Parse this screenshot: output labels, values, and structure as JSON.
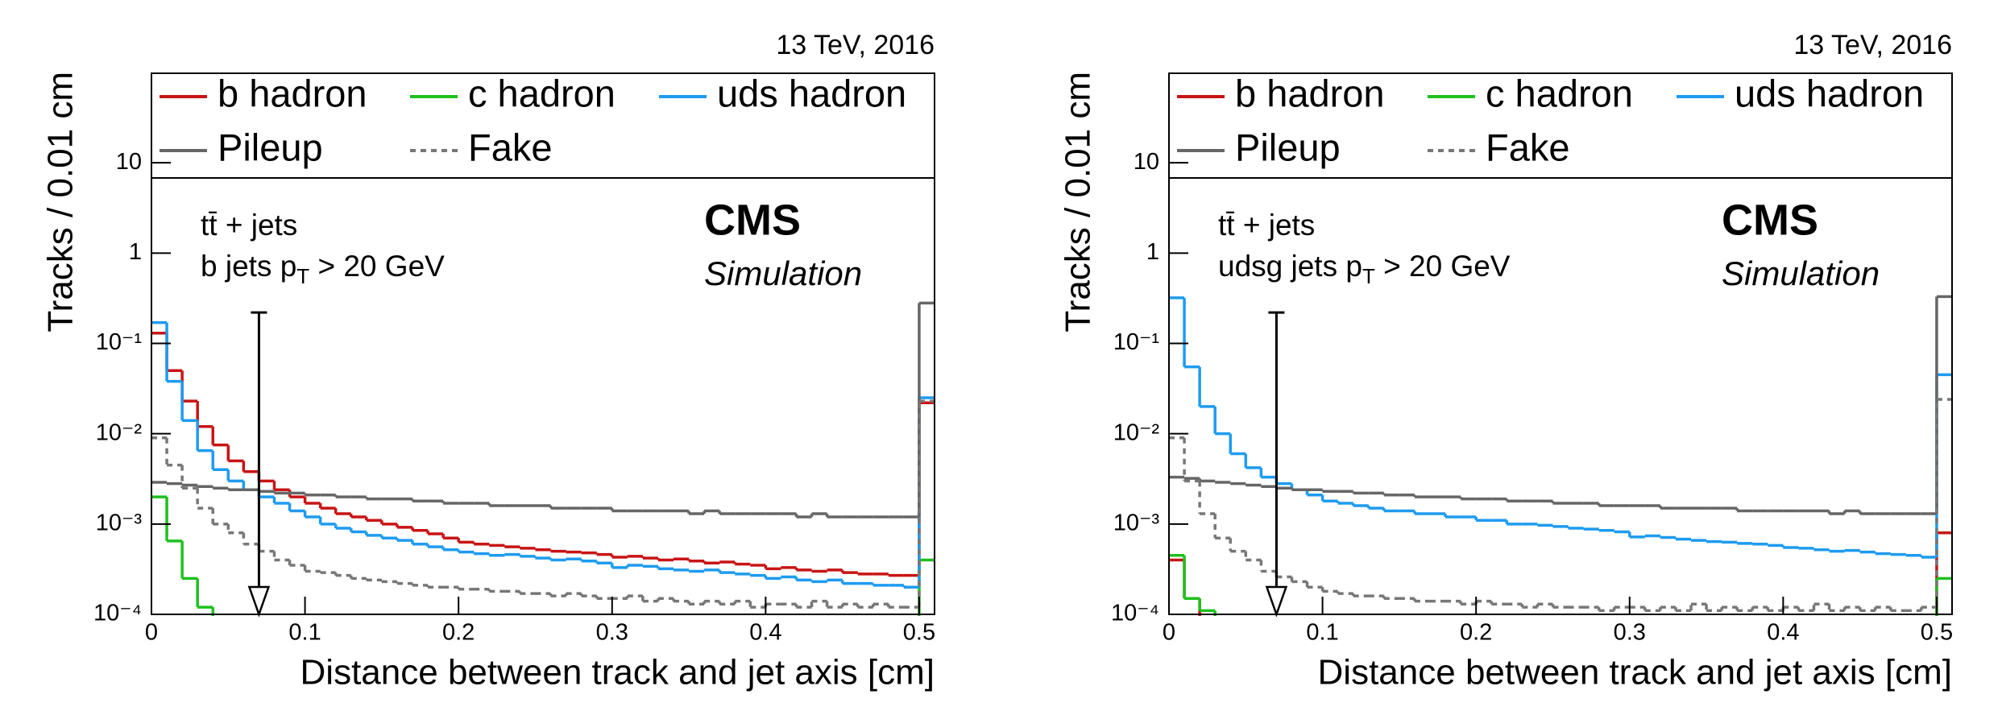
{
  "chart_data": [
    {
      "type": "histogram",
      "top_right": "13 TeV, 2016",
      "experiment": "CMS",
      "label": "Simulation",
      "annotations": [
        {
          "text": "tt̄ + jets"
        },
        {
          "text": "b jets p",
          "sub": "T",
          "tail": " > 20 GeV"
        }
      ],
      "xlabel": "Distance between track and jet axis [cm]",
      "ylabel": "Tracks / 0.01 cm",
      "log_y": true,
      "legend": "top",
      "xlim": [
        0,
        0.51
      ],
      "ylim": [
        0.0001,
        98
      ],
      "xticks": [
        0,
        0.1,
        0.2,
        0.3,
        0.4,
        0.5
      ],
      "yticks": [
        {
          "value": 0.0001,
          "label": "10⁻⁴"
        },
        {
          "value": 0.001,
          "label": "10⁻³"
        },
        {
          "value": 0.01,
          "label": "10⁻²"
        },
        {
          "value": 0.1,
          "label": "10⁻¹"
        },
        1,
        10
      ],
      "bins": [
        0,
        0.01,
        0.02,
        0.03,
        0.04,
        0.05,
        0.06,
        0.07,
        0.08,
        0.09,
        0.1,
        0.11,
        0.12,
        0.13,
        0.14,
        0.15,
        0.16,
        0.17,
        0.18,
        0.19,
        0.2,
        0.21,
        0.22,
        0.23,
        0.24,
        0.25,
        0.26,
        0.27,
        0.28,
        0.29,
        0.3,
        0.31,
        0.32,
        0.33,
        0.34,
        0.35,
        0.36,
        0.37,
        0.38,
        0.39,
        0.4,
        0.41,
        0.42,
        0.43,
        0.44,
        0.45,
        0.46,
        0.47,
        0.48,
        0.49,
        0.5,
        0.51
      ],
      "arrow": {
        "x": 0.07,
        "y": [
          0.22,
          0.0001
        ]
      },
      "series": [
        {
          "name": "b hadron",
          "color": "#c81414",
          "style": "solid",
          "values": [
            0.13,
            0.05,
            0.023,
            0.012,
            0.0075,
            0.005,
            0.0038,
            0.003,
            0.0024,
            0.002,
            0.0017,
            0.0015,
            0.0013,
            0.0012,
            0.0011,
            0.001,
            0.00092,
            0.00085,
            0.00078,
            0.0007,
            0.00063,
            0.0006,
            0.00058,
            0.00056,
            0.00054,
            0.00052,
            0.0005,
            0.00049,
            0.00048,
            0.00046,
            0.00043,
            0.00044,
            0.00042,
            0.0004,
            0.00041,
            0.00039,
            0.00037,
            0.00038,
            0.00036,
            0.00035,
            0.00032,
            0.00033,
            0.00031,
            0.0003,
            0.00031,
            0.00029,
            0.00028,
            0.00028,
            0.00027,
            0.00027,
            0.022
          ]
        },
        {
          "name": "c hadron",
          "color": "#1ec01e",
          "style": "solid",
          "values": [
            0.002,
            0.00065,
            0.00025,
            0.00012,
            1e-05,
            1e-05,
            1e-05,
            1e-05,
            1e-05,
            1e-05,
            1e-05,
            1e-05,
            1e-05,
            1e-05,
            1e-05,
            1e-05,
            1e-05,
            1e-05,
            1e-05,
            1e-05,
            1e-05,
            1e-05,
            1e-05,
            1e-05,
            1e-05,
            1e-05,
            1e-05,
            1e-05,
            1e-05,
            1e-05,
            1e-05,
            1e-05,
            1e-05,
            1e-05,
            1e-05,
            1e-05,
            1e-05,
            1e-05,
            1e-05,
            1e-05,
            1e-05,
            1e-05,
            1e-05,
            1e-05,
            1e-05,
            1e-05,
            1e-05,
            1e-05,
            1e-05,
            1e-05,
            0.0004
          ]
        },
        {
          "name": "uds hadron",
          "color": "#1e9bf0",
          "style": "solid",
          "values": [
            0.17,
            0.038,
            0.014,
            0.0065,
            0.004,
            0.003,
            0.0024,
            0.002,
            0.0017,
            0.0014,
            0.0012,
            0.001,
            0.0009,
            0.00082,
            0.00075,
            0.0007,
            0.00066,
            0.0006,
            0.00056,
            0.00052,
            0.00049,
            0.00047,
            0.00045,
            0.00046,
            0.00044,
            0.00042,
            0.0004,
            0.00041,
            0.00039,
            0.00037,
            0.00033,
            0.00035,
            0.00034,
            0.00032,
            0.00031,
            0.0003,
            0.00031,
            0.00029,
            0.00028,
            0.00027,
            0.00025,
            0.00026,
            0.00024,
            0.00023,
            0.00024,
            0.00022,
            0.00022,
            0.00021,
            0.00021,
            0.0002,
            0.025
          ]
        },
        {
          "name": "Pileup",
          "color": "#666666",
          "style": "solid",
          "values": [
            0.0029,
            0.0028,
            0.0027,
            0.0026,
            0.0025,
            0.0024,
            0.0024,
            0.0023,
            0.0022,
            0.0022,
            0.0021,
            0.0021,
            0.002,
            0.002,
            0.0019,
            0.0019,
            0.0019,
            0.0018,
            0.0018,
            0.0017,
            0.0017,
            0.0017,
            0.0016,
            0.0016,
            0.0016,
            0.0016,
            0.0015,
            0.0015,
            0.0015,
            0.0015,
            0.0014,
            0.0014,
            0.0014,
            0.0014,
            0.0014,
            0.0013,
            0.0014,
            0.0013,
            0.0013,
            0.0013,
            0.0013,
            0.0013,
            0.0012,
            0.0013,
            0.0012,
            0.0012,
            0.0012,
            0.0012,
            0.0012,
            0.0012,
            0.28
          ]
        },
        {
          "name": "Fake",
          "color": "#777777",
          "style": "dashed",
          "values": [
            0.009,
            0.0045,
            0.0025,
            0.0015,
            0.001,
            0.0008,
            0.0006,
            0.0005,
            0.0004,
            0.00035,
            0.0003,
            0.00029,
            0.00027,
            0.00025,
            0.00024,
            0.00023,
            0.00022,
            0.00021,
            0.0002,
            0.0002,
            0.00019,
            0.00019,
            0.00018,
            0.00018,
            0.00017,
            0.00017,
            0.00016,
            0.00017,
            0.00016,
            0.00015,
            0.00015,
            0.00016,
            0.00014,
            0.00015,
            0.00014,
            0.00013,
            0.00014,
            0.00013,
            0.00014,
            0.00012,
            0.00013,
            0.00013,
            0.00012,
            0.00014,
            0.00012,
            0.00013,
            0.00012,
            0.00013,
            0.00012,
            0.00012,
            0.023
          ]
        }
      ]
    },
    {
      "type": "histogram",
      "top_right": "13 TeV, 2016",
      "experiment": "CMS",
      "label": "Simulation",
      "annotations": [
        {
          "text": "tt̄ + jets"
        },
        {
          "text": "udsg jets p",
          "sub": "T",
          "tail": " > 20 GeV"
        }
      ],
      "xlabel": "Distance between track and jet axis [cm]",
      "ylabel": "Tracks / 0.01 cm",
      "log_y": true,
      "legend": "top",
      "xlim": [
        0,
        0.51
      ],
      "ylim": [
        0.0001,
        98
      ],
      "xticks": [
        0,
        0.1,
        0.2,
        0.3,
        0.4,
        0.5
      ],
      "yticks": [
        {
          "value": 0.0001,
          "label": "10⁻⁴"
        },
        {
          "value": 0.001,
          "label": "10⁻³"
        },
        {
          "value": 0.01,
          "label": "10⁻²"
        },
        {
          "value": 0.1,
          "label": "10⁻¹"
        },
        1,
        10
      ],
      "bins": [
        0,
        0.01,
        0.02,
        0.03,
        0.04,
        0.05,
        0.06,
        0.07,
        0.08,
        0.09,
        0.1,
        0.11,
        0.12,
        0.13,
        0.14,
        0.15,
        0.16,
        0.17,
        0.18,
        0.19,
        0.2,
        0.21,
        0.22,
        0.23,
        0.24,
        0.25,
        0.26,
        0.27,
        0.28,
        0.29,
        0.3,
        0.31,
        0.32,
        0.33,
        0.34,
        0.35,
        0.36,
        0.37,
        0.38,
        0.39,
        0.4,
        0.41,
        0.42,
        0.43,
        0.44,
        0.45,
        0.46,
        0.47,
        0.48,
        0.49,
        0.5,
        0.51
      ],
      "arrow": {
        "x": 0.07,
        "y": [
          0.22,
          0.0001
        ]
      },
      "series": [
        {
          "name": "b hadron",
          "color": "#c81414",
          "style": "solid",
          "values": [
            0.0004,
            0.00015,
            1e-05,
            1e-05,
            1e-05,
            1e-05,
            1e-05,
            1e-05,
            1e-05,
            1e-05,
            1e-05,
            1e-05,
            1e-05,
            1e-05,
            1e-05,
            1e-05,
            1e-05,
            1e-05,
            1e-05,
            1e-05,
            1e-05,
            1e-05,
            1e-05,
            1e-05,
            1e-05,
            1e-05,
            1e-05,
            1e-05,
            1e-05,
            1e-05,
            1e-05,
            1e-05,
            1e-05,
            1e-05,
            1e-05,
            1e-05,
            1e-05,
            1e-05,
            1e-05,
            1e-05,
            1e-05,
            1e-05,
            1e-05,
            1e-05,
            1e-05,
            1e-05,
            1e-05,
            1e-05,
            1e-05,
            1e-05,
            0.0008
          ]
        },
        {
          "name": "c hadron",
          "color": "#1ec01e",
          "style": "solid",
          "values": [
            0.00045,
            0.00015,
            0.00011,
            1e-05,
            1e-05,
            1e-05,
            1e-05,
            1e-05,
            1e-05,
            1e-05,
            1e-05,
            1e-05,
            1e-05,
            1e-05,
            1e-05,
            1e-05,
            1e-05,
            1e-05,
            1e-05,
            1e-05,
            1e-05,
            1e-05,
            1e-05,
            1e-05,
            1e-05,
            1e-05,
            1e-05,
            1e-05,
            1e-05,
            1e-05,
            1e-05,
            1e-05,
            1e-05,
            1e-05,
            1e-05,
            1e-05,
            1e-05,
            1e-05,
            1e-05,
            1e-05,
            1e-05,
            1e-05,
            1e-05,
            1e-05,
            1e-05,
            1e-05,
            1e-05,
            1e-05,
            1e-05,
            1e-05,
            0.00025
          ]
        },
        {
          "name": "uds hadron",
          "color": "#1e9bf0",
          "style": "solid",
          "values": [
            0.32,
            0.055,
            0.02,
            0.01,
            0.006,
            0.0042,
            0.0033,
            0.0028,
            0.0024,
            0.0021,
            0.0018,
            0.0017,
            0.0016,
            0.0015,
            0.0014,
            0.0014,
            0.0013,
            0.0013,
            0.0012,
            0.0012,
            0.0011,
            0.0011,
            0.001,
            0.001,
            0.00097,
            0.00094,
            0.0009,
            0.00088,
            0.00085,
            0.00082,
            0.00072,
            0.00074,
            0.00071,
            0.00068,
            0.00066,
            0.00064,
            0.00063,
            0.00061,
            0.0006,
            0.00058,
            0.00055,
            0.00054,
            0.00052,
            0.0005,
            0.00051,
            0.00049,
            0.00047,
            0.00046,
            0.00045,
            0.00043,
            0.045
          ]
        },
        {
          "name": "Pileup",
          "color": "#666666",
          "style": "solid",
          "values": [
            0.0033,
            0.0032,
            0.003,
            0.0029,
            0.0028,
            0.0027,
            0.0026,
            0.0025,
            0.0024,
            0.0024,
            0.0023,
            0.0023,
            0.0022,
            0.0022,
            0.0021,
            0.0021,
            0.002,
            0.002,
            0.002,
            0.0019,
            0.0019,
            0.0019,
            0.0018,
            0.0018,
            0.0018,
            0.0017,
            0.0017,
            0.0017,
            0.0016,
            0.0016,
            0.0016,
            0.0016,
            0.0015,
            0.0015,
            0.0015,
            0.0015,
            0.0015,
            0.0014,
            0.0014,
            0.0014,
            0.0014,
            0.0014,
            0.0014,
            0.0013,
            0.0014,
            0.0013,
            0.0013,
            0.0013,
            0.0013,
            0.0013,
            0.33
          ]
        },
        {
          "name": "Fake",
          "color": "#777777",
          "style": "dashed",
          "values": [
            0.009,
            0.003,
            0.0013,
            0.0007,
            0.0005,
            0.0004,
            0.0003,
            0.00026,
            0.00023,
            0.0002,
            0.00018,
            0.00017,
            0.00016,
            0.00016,
            0.00015,
            0.00015,
            0.00014,
            0.00014,
            0.00014,
            0.00013,
            0.00014,
            0.00013,
            0.00013,
            0.00012,
            0.00013,
            0.00012,
            0.00012,
            0.00012,
            0.00011,
            0.00012,
            0.00012,
            0.00011,
            0.00012,
            0.00011,
            0.00013,
            0.00011,
            0.00012,
            0.00011,
            0.00012,
            0.00011,
            0.00012,
            0.00011,
            0.00013,
            0.00011,
            0.00012,
            0.00011,
            0.00012,
            0.00011,
            0.00011,
            0.00012,
            0.024
          ]
        }
      ]
    }
  ]
}
